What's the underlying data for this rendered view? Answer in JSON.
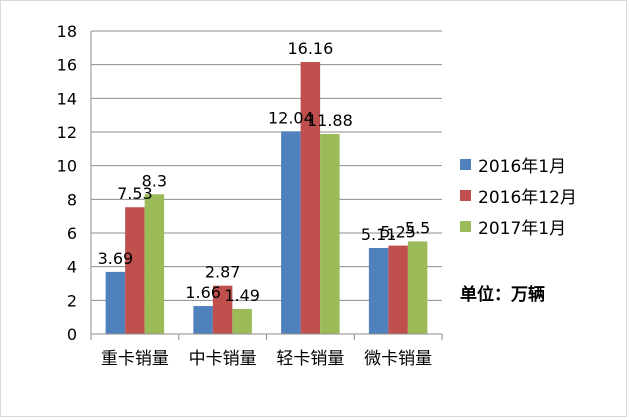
{
  "chart_data": {
    "type": "bar",
    "categories": [
      "重卡销量",
      "中卡销量",
      "轻卡销量",
      "微卡销量"
    ],
    "series": [
      {
        "name": "2016年1月",
        "color": "#4f81bd",
        "values": [
          3.69,
          1.66,
          12.04,
          5.11
        ]
      },
      {
        "name": "2016年12月",
        "color": "#c0504d",
        "values": [
          7.53,
          2.87,
          16.16,
          5.25
        ]
      },
      {
        "name": "2017年1月",
        "color": "#9bbb59",
        "values": [
          8.3,
          1.49,
          11.88,
          5.5
        ]
      }
    ],
    "ylim": [
      0,
      18
    ],
    "yticks": [
      0,
      2,
      4,
      6,
      8,
      10,
      12,
      14,
      16,
      18
    ],
    "ytick_labels": [
      "0",
      "2",
      "4",
      "6",
      "8",
      "10",
      "12",
      "14",
      "16",
      "18"
    ],
    "data_labels": [
      [
        "3.69",
        "1.66",
        "12.04",
        "5.11"
      ],
      [
        "7.53",
        "2.87",
        "16.16",
        "5.25"
      ],
      [
        "8.3",
        "1.49",
        "11.88",
        "5.5"
      ]
    ],
    "grid": true,
    "legend_position": "right",
    "unit_note": "单位：万辆"
  }
}
